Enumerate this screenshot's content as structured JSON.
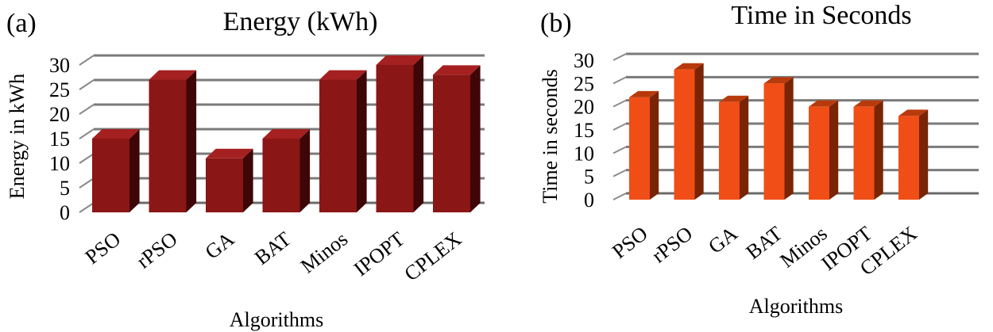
{
  "chart_data": [
    {
      "type": "bar",
      "panel_label": "(a)",
      "title": "Energy (kWh)",
      "xlabel": "Algorithms",
      "ylabel": "Energy in kWh",
      "categories": [
        "PSO",
        "rPSO",
        "GA",
        "BAT",
        "Minos",
        "IPOPT",
        "CPLEX"
      ],
      "values": [
        15,
        27,
        11,
        15,
        27,
        30,
        28
      ],
      "ylim": [
        0,
        30
      ],
      "yticks": [
        "0",
        "5",
        "10",
        "15",
        "20",
        "25",
        "30"
      ],
      "grid": true,
      "colors": {
        "front": "#8b1616",
        "side": "#3e0606",
        "top": "#a52020"
      }
    },
    {
      "type": "bar",
      "panel_label": "(b)",
      "title": "Time in Seconds",
      "xlabel": "Algorithms",
      "ylabel": "Time in seconds",
      "categories": [
        "PSO",
        "rPSO",
        "GA",
        "BAT",
        "Minos",
        "IPOPT",
        "CPLEX"
      ],
      "values": [
        22,
        28,
        21,
        25,
        20,
        20,
        18
      ],
      "ylim": [
        0,
        30
      ],
      "yticks": [
        "0",
        "5",
        "10",
        "15",
        "20",
        "25",
        "30"
      ],
      "grid": true,
      "colors": {
        "front": "#f04e16",
        "side": "#7a2406",
        "top": "#b83a0c"
      }
    }
  ]
}
